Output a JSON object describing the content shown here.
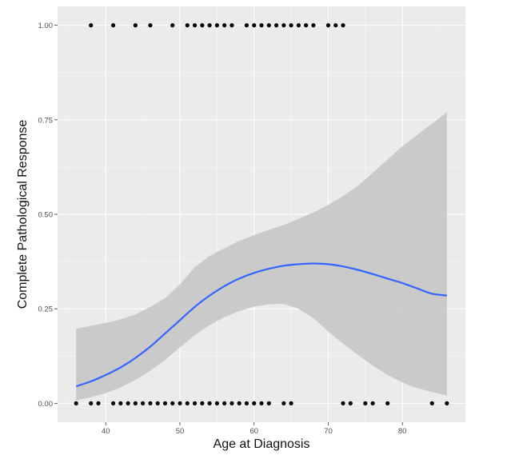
{
  "chart_data": {
    "type": "scatter",
    "title": "",
    "xlabel": "Age at Diagnosis",
    "ylabel": "Complete Pathological Response",
    "xlim": [
      33.5,
      88.5
    ],
    "ylim": [
      -0.05,
      1.05
    ],
    "x_ticks": [
      40,
      50,
      60,
      70,
      80
    ],
    "x_tick_labels": [
      "40",
      "50",
      "60",
      "70",
      "80"
    ],
    "y_ticks": [
      0,
      0.25,
      0.5,
      0.75,
      1.0
    ],
    "y_tick_labels": [
      "0.00",
      "0.25",
      "0.50",
      "0.75",
      "1.00"
    ],
    "grid": true,
    "legend": "none",
    "colors": {
      "panel": "#ebebeb",
      "grid_major": "#ffffff",
      "grid_minor": "#f5f5f5",
      "points": "#000000",
      "fit_line": "#3366ff",
      "ribbon": "#c7c7c7"
    },
    "points": {
      "response_1": [
        38,
        41,
        44,
        46,
        49,
        51,
        52,
        53,
        54,
        55,
        56,
        57,
        59,
        60,
        61,
        62,
        63,
        64,
        65,
        66,
        67,
        68,
        70,
        71,
        72
      ],
      "response_0": [
        36,
        38,
        39,
        41,
        42,
        43,
        44,
        45,
        46,
        47,
        48,
        49,
        50,
        51,
        52,
        53,
        54,
        55,
        56,
        57,
        58,
        59,
        60,
        61,
        62,
        64,
        65,
        72,
        73,
        75,
        76,
        78,
        84,
        86
      ]
    },
    "smooth": {
      "x": [
        36,
        38,
        40,
        42,
        44,
        46,
        48,
        50,
        52,
        54,
        56,
        58,
        60,
        62,
        64,
        66,
        68,
        70,
        72,
        74,
        76,
        78,
        80,
        82,
        84,
        86
      ],
      "fit": [
        0.045,
        0.058,
        0.075,
        0.095,
        0.12,
        0.15,
        0.185,
        0.22,
        0.255,
        0.285,
        0.31,
        0.33,
        0.345,
        0.356,
        0.364,
        0.368,
        0.37,
        0.368,
        0.362,
        0.353,
        0.342,
        0.33,
        0.318,
        0.304,
        0.29,
        0.285
      ],
      "lower": [
        0.008,
        0.016,
        0.027,
        0.042,
        0.062,
        0.086,
        0.115,
        0.148,
        0.18,
        0.207,
        0.228,
        0.244,
        0.256,
        0.262,
        0.263,
        0.25,
        0.225,
        0.19,
        0.158,
        0.128,
        0.1,
        0.075,
        0.055,
        0.04,
        0.03,
        0.02
      ],
      "upper": [
        0.197,
        0.205,
        0.213,
        0.222,
        0.235,
        0.255,
        0.278,
        0.315,
        0.36,
        0.39,
        0.41,
        0.43,
        0.445,
        0.459,
        0.472,
        0.488,
        0.505,
        0.525,
        0.548,
        0.575,
        0.61,
        0.645,
        0.68,
        0.71,
        0.74,
        0.77
      ]
    }
  }
}
